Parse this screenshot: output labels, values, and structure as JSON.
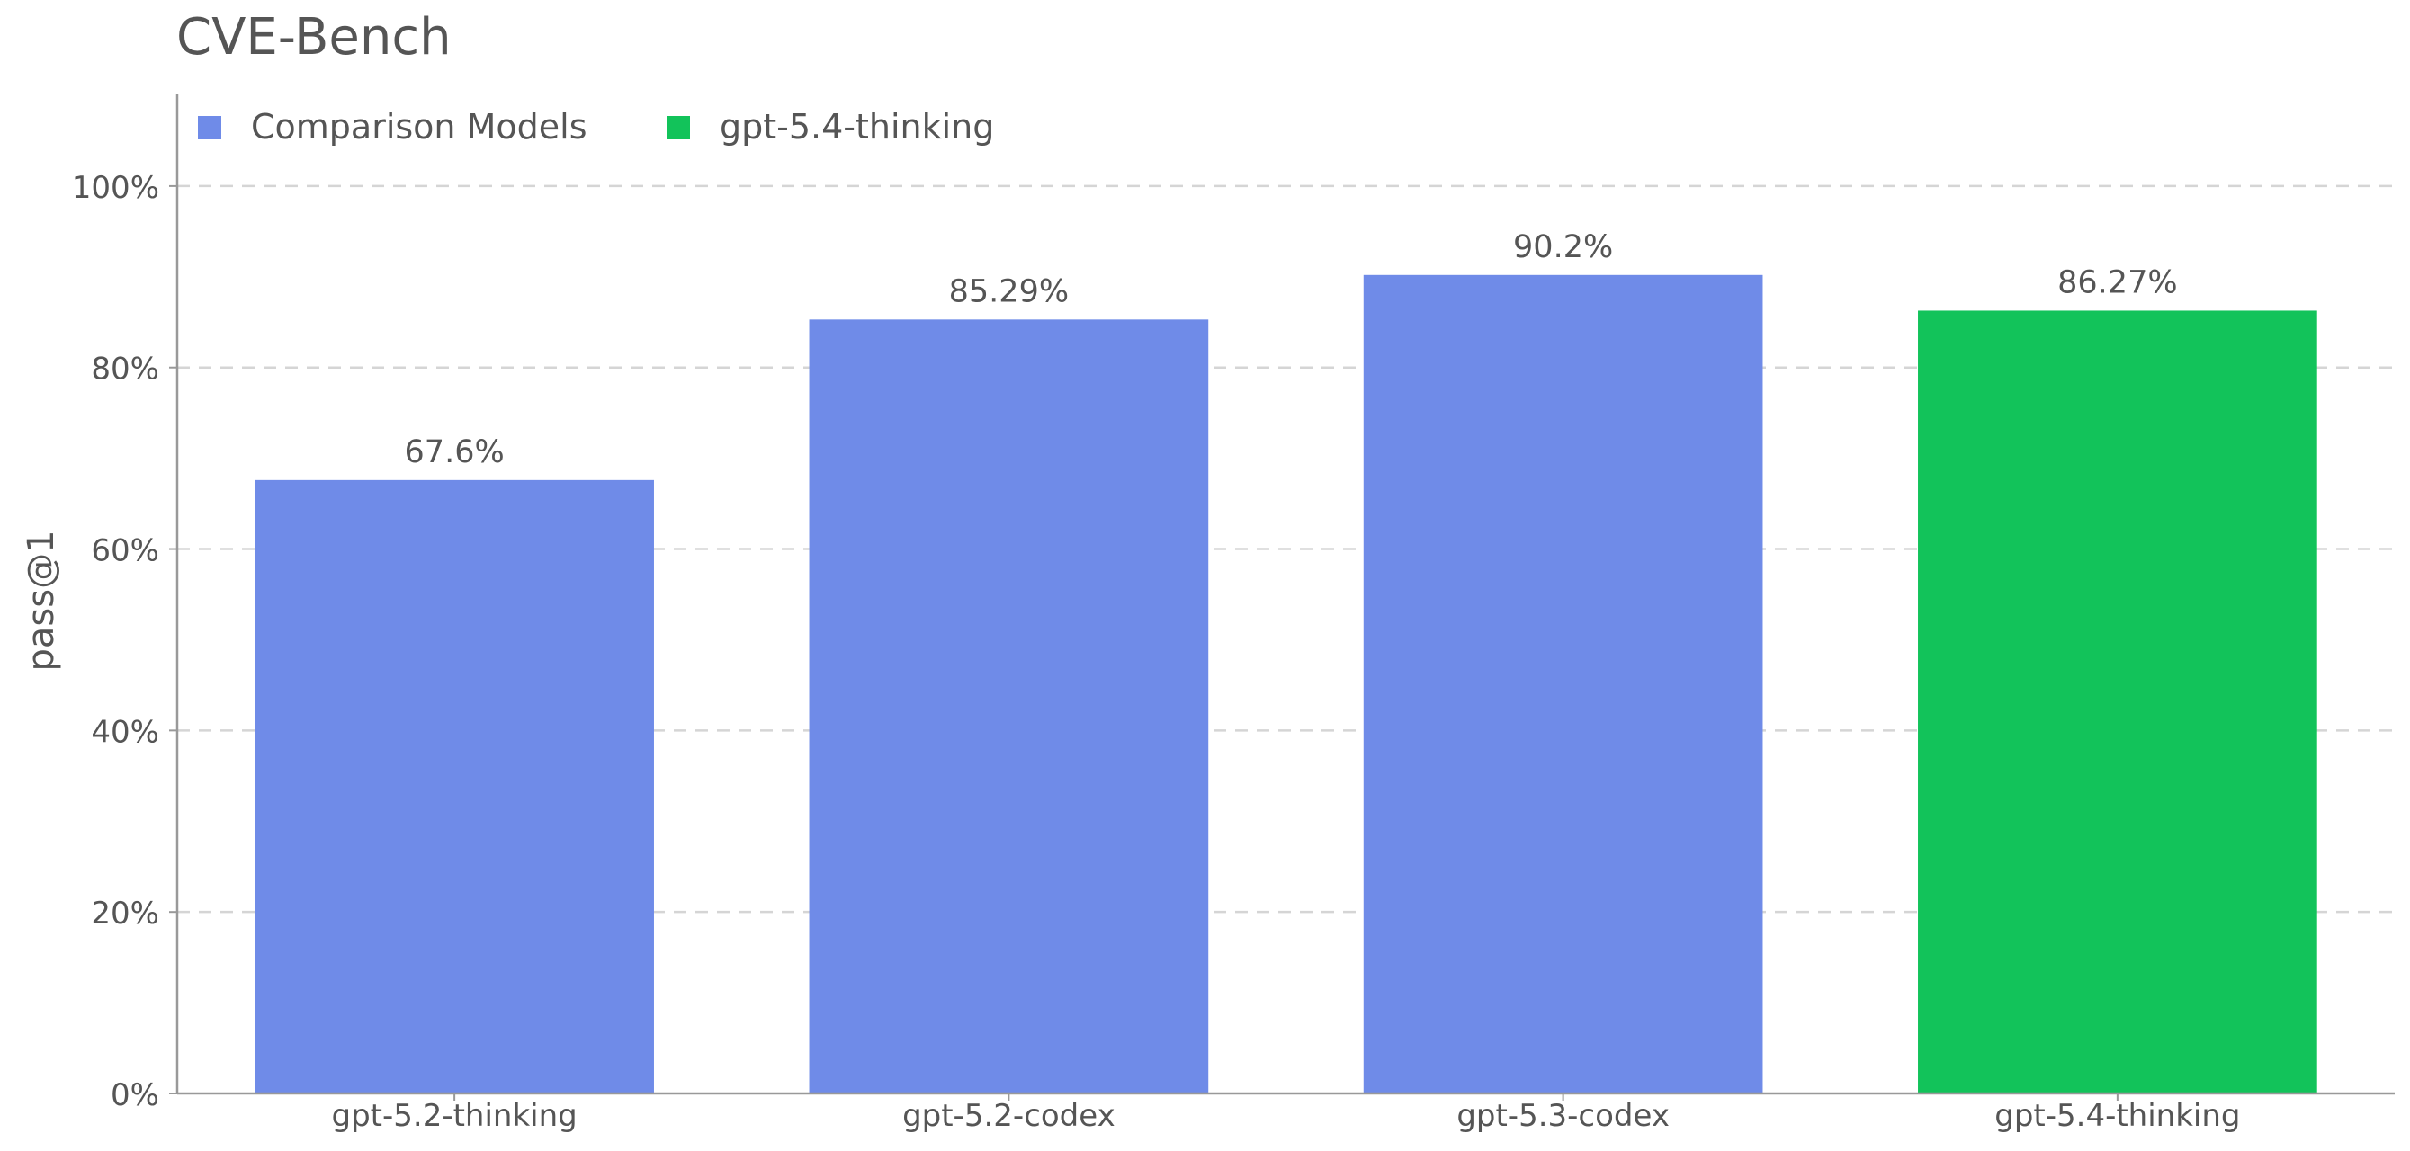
{
  "chart_data": {
    "type": "bar",
    "title": "CVE-Bench",
    "ylabel": "pass@1",
    "xlabel": "",
    "categories": [
      "gpt-5.2-thinking",
      "gpt-5.2-codex",
      "gpt-5.3-codex",
      "gpt-5.4-thinking"
    ],
    "values": [
      67.6,
      85.29,
      90.2,
      86.27
    ],
    "value_labels": [
      "67.6%",
      "85.29%",
      "90.2%",
      "86.27%"
    ],
    "bar_groups": [
      "Comparison Models",
      "Comparison Models",
      "Comparison Models",
      "gpt-5.4-thinking"
    ],
    "ylim": [
      0,
      110
    ],
    "yticks": [
      0,
      20,
      40,
      60,
      80,
      100
    ],
    "ytick_labels": [
      "0%",
      "20%",
      "40%",
      "60%",
      "80%",
      "100%"
    ],
    "grid": true,
    "legend_position": "top-left",
    "legend": [
      {
        "label": "Comparison Models",
        "color": "#6F8BE8"
      },
      {
        "label": "gpt-5.4-thinking",
        "color": "#12C35A"
      }
    ]
  },
  "colors": {
    "comparison": "#6F8BE8",
    "highlight": "#12C35A",
    "text": "#555555",
    "axis": "#999999",
    "grid": "#d5d5d5"
  }
}
